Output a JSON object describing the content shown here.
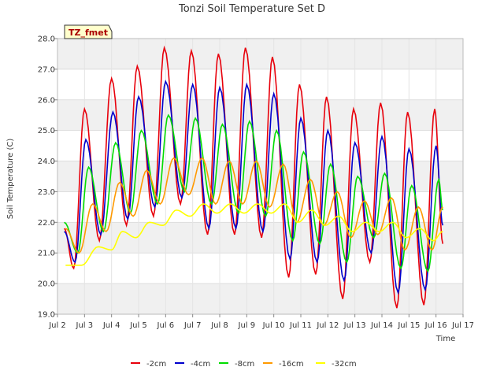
{
  "chart_data": {
    "type": "line",
    "title": "Tonzi Soil Temperature Set D",
    "xlabel": "Time",
    "ylabel": "Soil Temperature (C)",
    "badge": "TZ_fmet",
    "ylim": [
      19.0,
      28.0
    ],
    "xlim": [
      2,
      17
    ],
    "x_ticks": [
      {
        "v": 2,
        "label": "Jul 2"
      },
      {
        "v": 3,
        "label": "Jul 3"
      },
      {
        "v": 4,
        "label": "Jul 4"
      },
      {
        "v": 5,
        "label": "Jul 5"
      },
      {
        "v": 6,
        "label": "Jul 6"
      },
      {
        "v": 7,
        "label": "Jul 7"
      },
      {
        "v": 8,
        "label": "Jul 8"
      },
      {
        "v": 9,
        "label": "Jul 9"
      },
      {
        "v": 10,
        "label": "Jul 10"
      },
      {
        "v": 11,
        "label": "Jul 11"
      },
      {
        "v": 12,
        "label": "Jul 12"
      },
      {
        "v": 13,
        "label": "Jul 13"
      },
      {
        "v": 14,
        "label": "Jul 14"
      },
      {
        "v": 15,
        "label": "Jul 15"
      },
      {
        "v": 16,
        "label": "Jul 16"
      },
      {
        "v": 17,
        "label": "Jul 17"
      }
    ],
    "y_ticks": [
      {
        "v": 19,
        "label": "19.0"
      },
      {
        "v": 20,
        "label": "20.0"
      },
      {
        "v": 21,
        "label": "21.0"
      },
      {
        "v": 22,
        "label": "22.0"
      },
      {
        "v": 23,
        "label": "23.0"
      },
      {
        "v": 24,
        "label": "24.0"
      },
      {
        "v": 25,
        "label": "25.0"
      },
      {
        "v": 26,
        "label": "26.0"
      },
      {
        "v": 27,
        "label": "27.0"
      },
      {
        "v": 28,
        "label": "28.0"
      }
    ],
    "grid": true,
    "legend_position": "bottom",
    "series": [
      {
        "name": "-2cm",
        "color": "#e8000b",
        "x": [
          2.25,
          2.6,
          3.0,
          3.55,
          4.0,
          4.55,
          4.95,
          5.55,
          5.95,
          6.55,
          6.95,
          7.55,
          7.95,
          8.55,
          8.95,
          9.55,
          9.95,
          10.55,
          10.95,
          11.55,
          11.95,
          12.55,
          12.95,
          13.55,
          13.95,
          14.55,
          14.95,
          15.55,
          15.95,
          16.25
        ],
        "y": [
          21.8,
          20.5,
          25.7,
          21.4,
          26.7,
          21.9,
          27.1,
          22.2,
          27.7,
          22.6,
          27.6,
          21.6,
          27.5,
          21.6,
          27.7,
          21.5,
          27.4,
          20.2,
          26.5,
          20.3,
          26.1,
          19.5,
          25.7,
          20.7,
          25.9,
          19.2,
          25.6,
          19.3,
          25.7,
          21.3
        ]
      },
      {
        "name": "-4cm",
        "color": "#0000cc",
        "x": [
          2.25,
          2.65,
          3.05,
          3.6,
          4.05,
          4.6,
          5.0,
          5.6,
          6.0,
          6.6,
          7.0,
          7.6,
          8.0,
          8.6,
          9.0,
          9.6,
          10.0,
          10.6,
          11.0,
          11.6,
          12.0,
          12.6,
          13.0,
          13.6,
          14.0,
          14.6,
          15.0,
          15.6,
          16.0,
          16.25
        ],
        "y": [
          21.7,
          20.7,
          24.7,
          21.6,
          25.6,
          22.1,
          26.1,
          22.5,
          26.6,
          22.8,
          26.5,
          21.8,
          26.4,
          21.8,
          26.5,
          21.7,
          26.2,
          20.8,
          25.4,
          20.7,
          25.0,
          20.1,
          24.6,
          21.0,
          24.8,
          19.7,
          24.4,
          19.8,
          24.5,
          21.9
        ]
      },
      {
        "name": "-8cm",
        "color": "#00dd00",
        "x": [
          2.25,
          2.75,
          3.15,
          3.7,
          4.15,
          4.7,
          5.1,
          5.7,
          6.1,
          6.7,
          7.1,
          7.7,
          8.1,
          8.7,
          9.1,
          9.7,
          10.1,
          10.7,
          11.1,
          11.7,
          12.1,
          12.7,
          13.1,
          13.7,
          14.1,
          14.7,
          15.1,
          15.7,
          16.1,
          16.25
        ],
        "y": [
          22.0,
          21.0,
          23.8,
          21.7,
          24.6,
          22.3,
          25.0,
          22.6,
          25.5,
          23.0,
          25.4,
          22.6,
          25.2,
          22.3,
          25.3,
          22.2,
          25.0,
          21.4,
          24.3,
          21.3,
          23.9,
          20.7,
          23.5,
          21.5,
          23.6,
          20.5,
          23.2,
          20.4,
          23.4,
          22.4
        ]
      },
      {
        "name": "-16cm",
        "color": "#ff9900",
        "x": [
          2.3,
          2.8,
          3.3,
          3.8,
          4.3,
          4.8,
          5.3,
          5.8,
          6.3,
          6.85,
          7.35,
          7.85,
          8.35,
          8.85,
          9.35,
          9.85,
          10.35,
          10.85,
          11.35,
          11.85,
          12.35,
          12.85,
          13.35,
          13.85,
          14.35,
          14.85,
          15.35,
          15.85,
          16.25
        ],
        "y": [
          21.8,
          21.0,
          22.6,
          21.7,
          23.3,
          22.2,
          23.7,
          22.6,
          24.1,
          22.9,
          24.1,
          22.6,
          24.0,
          22.6,
          24.0,
          22.5,
          23.9,
          22.0,
          23.4,
          21.9,
          23.0,
          21.5,
          22.7,
          21.6,
          22.8,
          21.1,
          22.5,
          21.1,
          22.5
        ]
      },
      {
        "name": "-32cm",
        "color": "#ffff00",
        "x": [
          2.3,
          2.9,
          3.5,
          4.0,
          4.4,
          4.9,
          5.4,
          5.9,
          6.4,
          6.9,
          7.4,
          7.9,
          8.4,
          8.9,
          9.4,
          9.9,
          10.4,
          10.9,
          11.4,
          11.9,
          12.4,
          12.9,
          13.4,
          13.9,
          14.4,
          14.9,
          15.4,
          15.9,
          16.25
        ],
        "y": [
          20.6,
          20.6,
          21.2,
          21.1,
          21.7,
          21.5,
          22.0,
          21.9,
          22.4,
          22.2,
          22.6,
          22.3,
          22.6,
          22.3,
          22.6,
          22.3,
          22.6,
          22.0,
          22.4,
          21.9,
          22.2,
          21.7,
          22.0,
          21.7,
          22.0,
          21.5,
          21.8,
          21.4,
          21.7
        ]
      }
    ]
  }
}
